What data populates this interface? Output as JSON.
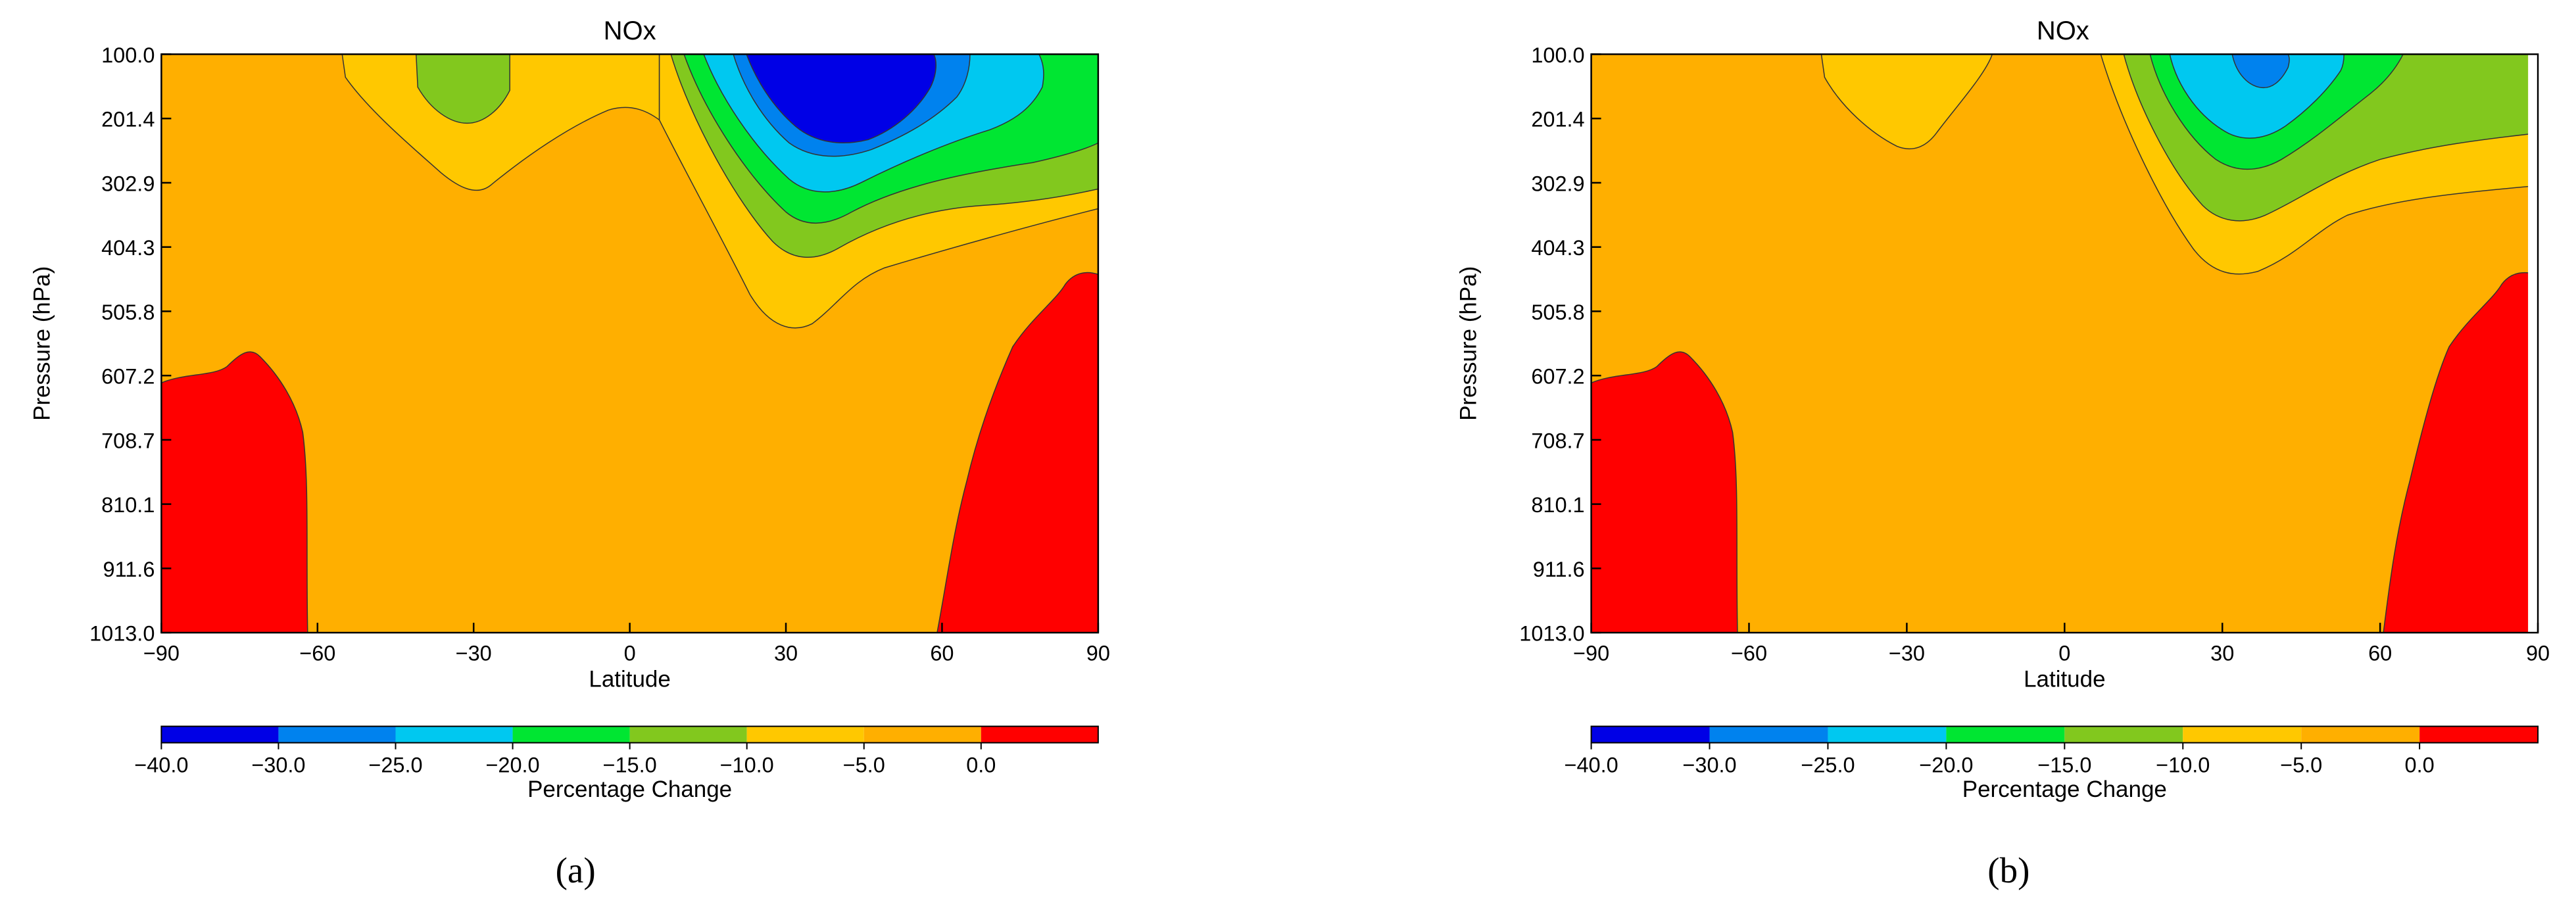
{
  "chart_data": [
    {
      "type": "heatmap",
      "subtype": "filled-contour",
      "panel_label": "(a)",
      "title": "NOx",
      "xlabel": "Latitude",
      "ylabel": "Pressure (hPa)",
      "xlim": [
        -90,
        90
      ],
      "ylim": [
        1013.0,
        100.0
      ],
      "x_ticks": [
        "−90",
        "−60",
        "−30",
        "0",
        "30",
        "60",
        "90"
      ],
      "y_ticks": [
        "100.0",
        "201.4",
        "302.9",
        "404.3",
        "505.8",
        "607.2",
        "708.7",
        "810.1",
        "911.6",
        "1013.0"
      ],
      "colorbar": {
        "label": "Percentage Change",
        "levels": [
          -40,
          -30,
          -25,
          -20,
          -15,
          -10,
          -5,
          0
        ],
        "tick_labels": [
          "−40.0",
          "−30.0",
          "−25.0",
          "−20.0",
          "−15.0",
          "−10.0",
          "−5.0",
          "0.0"
        ],
        "colors": [
          "#0000e6",
          "#0082ee",
          "#00c8f0",
          "#00e632",
          "#82c81e",
          "#ffc800",
          "#ffaf00",
          "#ff0000"
        ]
      },
      "features": {
        "minimum": {
          "lat": 40,
          "pressure": 150,
          "value_range": "< -30"
        },
        "positive_regions": [
          {
            "lat_range": [
              -90,
              -63
            ],
            "pressure_range": [
              600,
              1013
            ]
          },
          {
            "lat_range": [
              60,
              90
            ],
            "pressure_range": [
              470,
              1013
            ]
          }
        ],
        "secondary_minimum": {
          "lat": -33,
          "pressure": 150,
          "value_range": "-15 to -10"
        }
      }
    },
    {
      "type": "heatmap",
      "subtype": "filled-contour",
      "panel_label": "(b)",
      "title": "NOx",
      "xlabel": "Latitude",
      "ylabel": "Pressure (hPa)",
      "xlim": [
        -90,
        90
      ],
      "ylim": [
        1013.0,
        100.0
      ],
      "x_ticks": [
        "−90",
        "−60",
        "−30",
        "0",
        "30",
        "60",
        "90"
      ],
      "y_ticks": [
        "100.0",
        "201.4",
        "302.9",
        "404.3",
        "505.8",
        "607.2",
        "708.7",
        "810.1",
        "911.6",
        "1013.0"
      ],
      "colorbar": {
        "label": "Percentage Change",
        "levels": [
          -40,
          -30,
          -25,
          -20,
          -15,
          -10,
          -5,
          0
        ],
        "tick_labels": [
          "−40.0",
          "−30.0",
          "−25.0",
          "−20.0",
          "−15.0",
          "−10.0",
          "−5.0",
          "0.0"
        ],
        "colors": [
          "#0000e6",
          "#0082ee",
          "#00c8f0",
          "#00e632",
          "#82c81e",
          "#ffc800",
          "#ffaf00",
          "#ff0000"
        ]
      },
      "features": {
        "minimum": {
          "lat": 40,
          "pressure": 130,
          "value_range": "-30 to -25"
        },
        "positive_regions": [
          {
            "lat_range": [
              -90,
              -63
            ],
            "pressure_range": [
              600,
              1013
            ]
          },
          {
            "lat_range": [
              60,
              90
            ],
            "pressure_range": [
              470,
              1013
            ]
          }
        ],
        "secondary_minimum": {
          "lat": -30,
          "pressure": 160,
          "value_range": "-10 to -5"
        }
      }
    }
  ]
}
